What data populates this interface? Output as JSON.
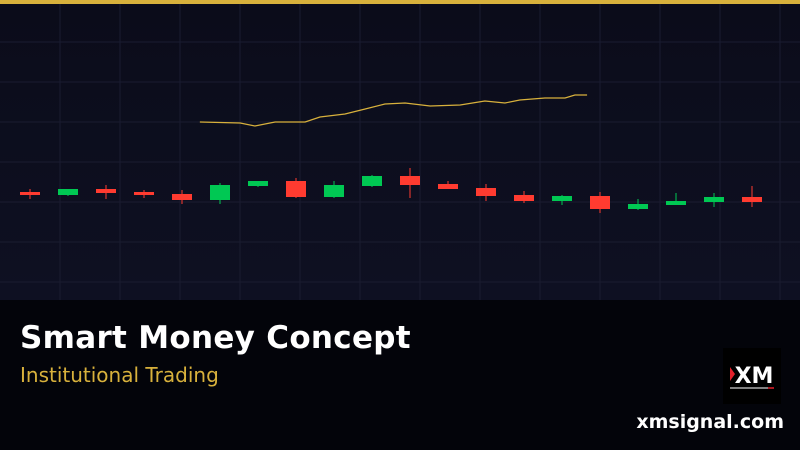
{
  "colors": {
    "accent": "#d8b13c",
    "bull": "#00c853",
    "bear": "#ff3b30",
    "ma_line": "#d8b13c",
    "grid": "#1a1c30"
  },
  "banner": {
    "title": "Smart Money Concept",
    "subtitle": "Institutional Trading",
    "website": "xmsignal.com",
    "logo_text": "XM"
  },
  "chart_data": {
    "type": "candlestick",
    "title": "",
    "xlabel": "",
    "ylabel": "",
    "grid": true,
    "axes_visible": false,
    "candles": [
      {
        "o": 108,
        "h": 111,
        "l": 101,
        "c": 105
      },
      {
        "o": 105,
        "h": 111,
        "l": 104,
        "c": 111
      },
      {
        "o": 111,
        "h": 115,
        "l": 101,
        "c": 107
      },
      {
        "o": 108,
        "h": 110,
        "l": 102,
        "c": 105
      },
      {
        "o": 106,
        "h": 110,
        "l": 96,
        "c": 100
      },
      {
        "o": 100,
        "h": 117,
        "l": 96,
        "c": 115
      },
      {
        "o": 114,
        "h": 119,
        "l": 113,
        "c": 119
      },
      {
        "o": 119,
        "h": 122,
        "l": 102,
        "c": 103
      },
      {
        "o": 103,
        "h": 119,
        "l": 102,
        "c": 115
      },
      {
        "o": 114,
        "h": 125,
        "l": 113,
        "c": 124
      },
      {
        "o": 124,
        "h": 132,
        "l": 102,
        "c": 115
      },
      {
        "o": 116,
        "h": 119,
        "l": 111,
        "c": 111
      },
      {
        "o": 112,
        "h": 116,
        "l": 99,
        "c": 104
      },
      {
        "o": 105,
        "h": 109,
        "l": 97,
        "c": 99
      },
      {
        "o": 99,
        "h": 105,
        "l": 95,
        "c": 104
      },
      {
        "o": 104,
        "h": 108,
        "l": 87,
        "c": 91
      },
      {
        "o": 91,
        "h": 101,
        "l": 90,
        "c": 96
      },
      {
        "o": 95,
        "h": 107,
        "l": 95,
        "c": 99
      },
      {
        "o": 98,
        "h": 107,
        "l": 93,
        "c": 103
      },
      {
        "o": 103,
        "h": 114,
        "l": 93,
        "c": 98
      }
    ],
    "overlay_line": {
      "x": [
        4.47,
        5.53,
        5.92,
        6.45,
        7.24,
        7.63,
        8.29,
        8.82,
        9.34,
        9.87,
        10.53,
        11.32,
        11.97,
        12.5,
        12.89,
        13.55,
        14.08,
        14.34,
        14.66
      ],
      "y": [
        178,
        177,
        174,
        178,
        178,
        183,
        186,
        191,
        196,
        197,
        194,
        195,
        199,
        197,
        200,
        202,
        202,
        205,
        205
      ]
    }
  }
}
